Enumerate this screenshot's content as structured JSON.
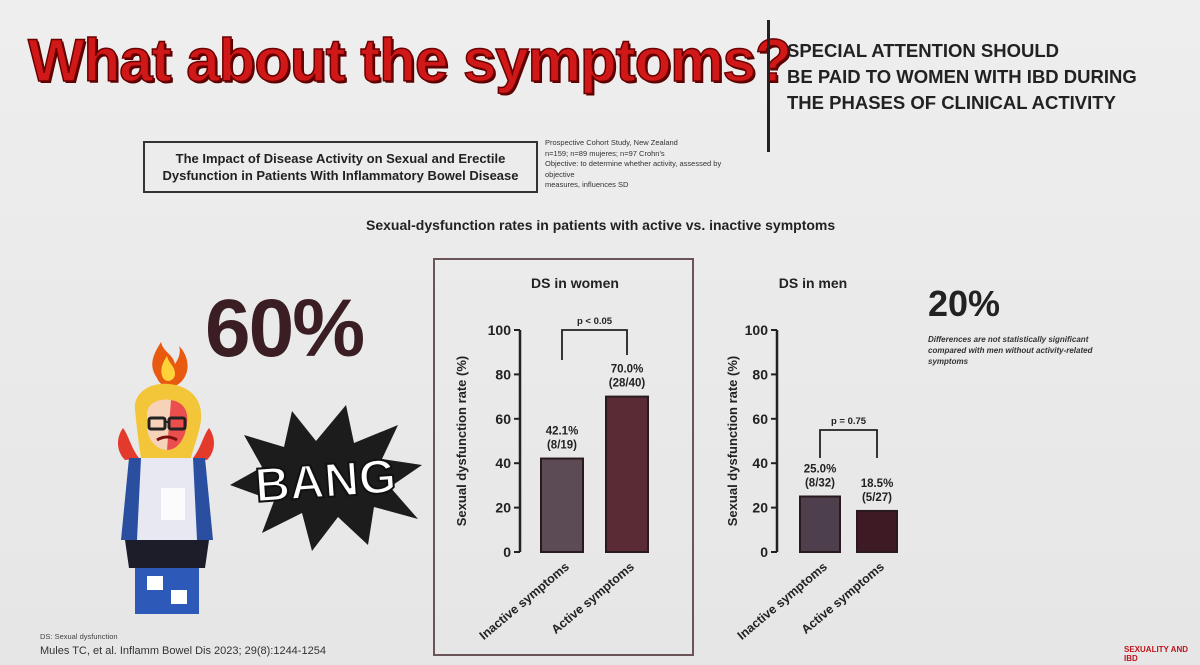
{
  "slide": {
    "title": "What about the symptoms?",
    "attention_lines": [
      "SPECIAL ATTENTION SHOULD",
      "BE PAID TO WOMEN WITH IBD DURING",
      "THE PHASES OF CLINICAL ACTIVITY"
    ],
    "study_title_lines": [
      "The Impact of Disease Activity on Sexual and Erectile",
      "Dysfunction in Patients With Inflammatory Bowel Disease"
    ],
    "study_notes": [
      "Prospective Cohort Study, New Zealand",
      "n=159; n=89 mujeres; n=97 Crohn's",
      "Objective: to determine whether activity, assessed by objective",
      "measures, influences SD"
    ],
    "subtitle": "Sexual-dysfunction rates in patients with active vs. inactive symptoms",
    "big_women": "60%",
    "big_men": "20%",
    "men_note": "Differences are not statistically significant compared with men without activity-related symptoms",
    "comic_text": "BANG",
    "footer_abbrev": "DS: Sexual dysfunction",
    "footer_ref": "Mules TC, et al. Inflamm Bowel Dis 2023; 29(8):1244-1254",
    "brand": "SEXUALITY AND IBD"
  },
  "colors": {
    "title_red": "#d01818",
    "women_active_bar": "#5a2a35",
    "women_inactive_bar": "#5c4a55",
    "men_inactive_bar": "#4e3f4c",
    "men_active_bar": "#3e1a24"
  },
  "chart_data": [
    {
      "type": "bar",
      "title": "DS in women",
      "ylabel": "Sexual dysfunction rate (%)",
      "xlabel": "",
      "categories": [
        "Inactive symptoms",
        "Active symptoms"
      ],
      "values": [
        42.1,
        70.0
      ],
      "bar_labels": [
        [
          "42.1%",
          "(8/19)"
        ],
        [
          "70.0%",
          "(28/40)"
        ]
      ],
      "ylim": [
        0,
        100
      ],
      "yticks": [
        0,
        20,
        40,
        60,
        80,
        100
      ],
      "significance": "p < 0.05"
    },
    {
      "type": "bar",
      "title": "DS in men",
      "ylabel": "Sexual dysfunction rate (%)",
      "xlabel": "",
      "categories": [
        "Inactive symptoms",
        "Active symptoms"
      ],
      "values": [
        25.0,
        18.5
      ],
      "bar_labels": [
        [
          "25.0%",
          "(8/32)"
        ],
        [
          "18.5%",
          "(5/27)"
        ]
      ],
      "ylim": [
        0,
        100
      ],
      "yticks": [
        0,
        20,
        40,
        60,
        80,
        100
      ],
      "significance": "p = 0.75"
    }
  ]
}
